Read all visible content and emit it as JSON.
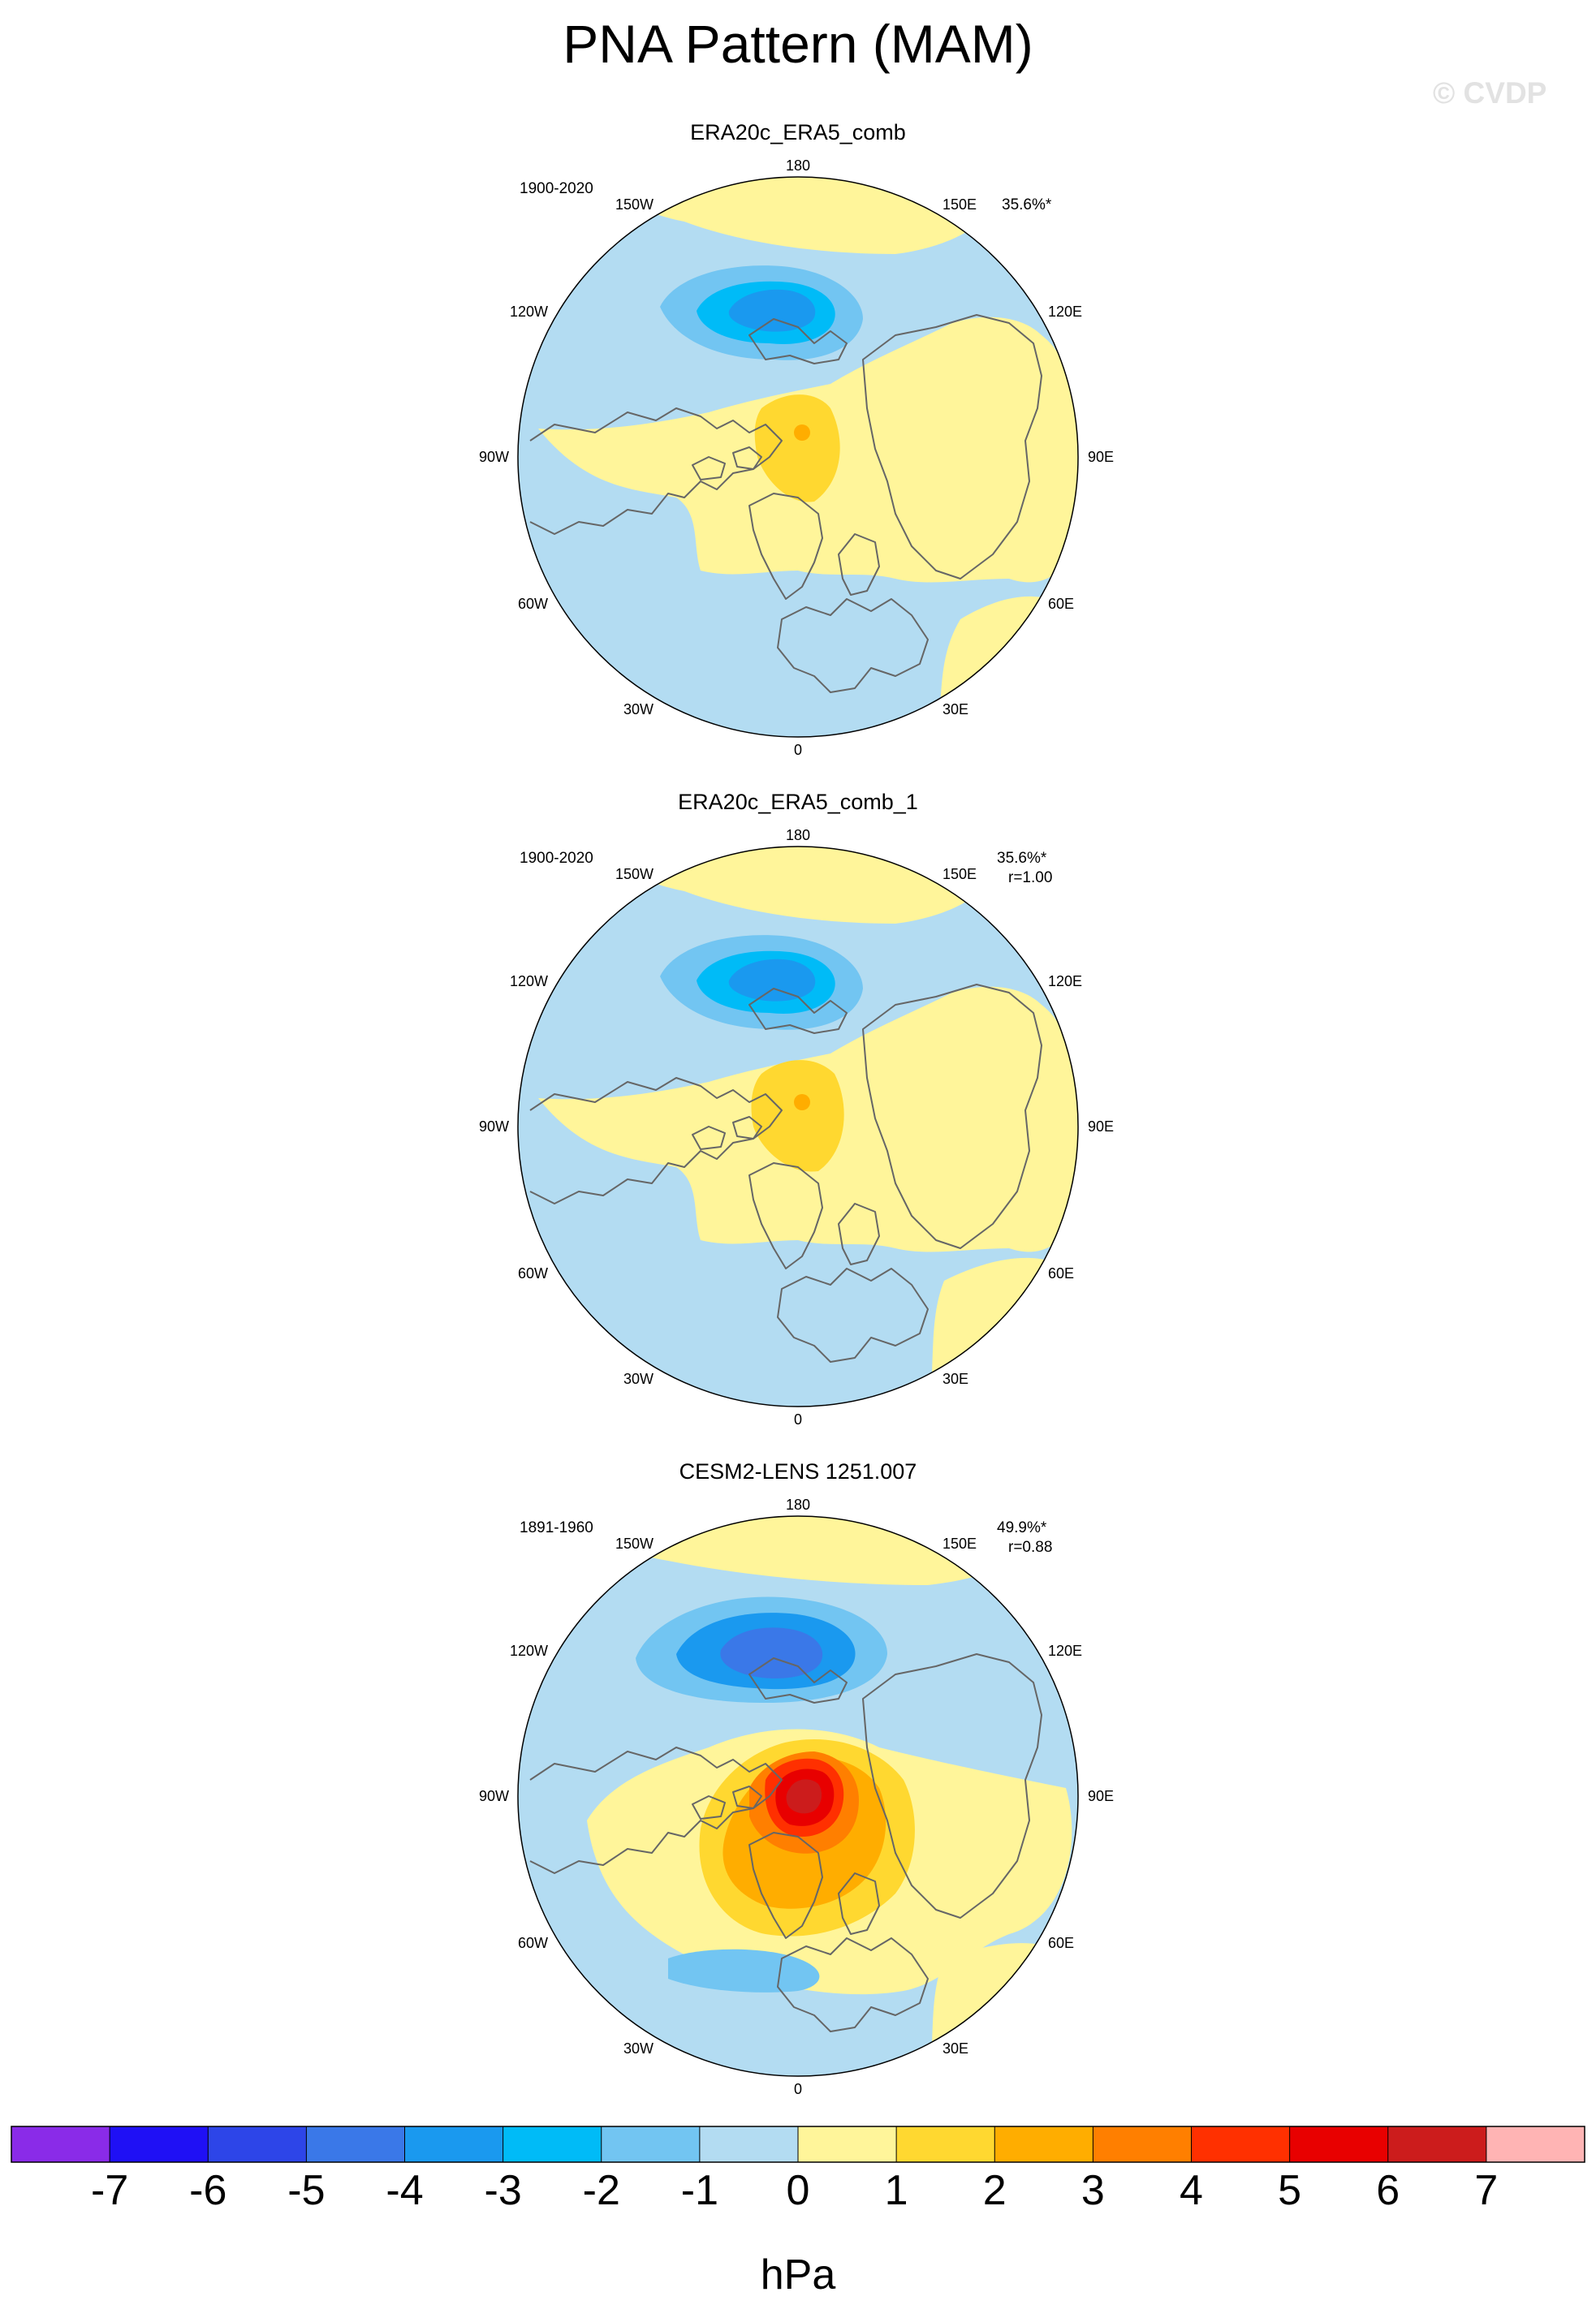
{
  "title": "PNA Pattern (MAM)",
  "watermark": "© CVDP",
  "colors": {
    "ocean_neg1": "#b3dcf2",
    "pos0to1": "#fff59a",
    "pos1to2": "#ffd830",
    "pos2to3": "#ffad00",
    "pos3to4": "#ff7f00",
    "pos4to5": "#ff3000",
    "pos5to6": "#e80000",
    "pos6to7": "#cc1c1c",
    "neg2to1": "#72c5f2",
    "neg3to2": "#00bbf7",
    "neg4to3": "#1a99ef",
    "neg5to4": "#3a78e8"
  },
  "panels": [
    {
      "title": "ERA20c_ERA5_comb",
      "period": "1900-2020",
      "pct": "35.6%*",
      "r": ""
    },
    {
      "title": "ERA20c_ERA5_comb_1",
      "period": "1900-2020",
      "pct": "35.6%*",
      "r": "r=1.00"
    },
    {
      "title": "CESM2-LENS 1251.007",
      "period": "1891-1960",
      "pct": "49.9%*",
      "r": "r=0.88"
    }
  ],
  "longitudes": {
    "top": "180",
    "bottom": "0",
    "left": "90W",
    "right": "90E",
    "w150": "150W",
    "w120": "120W",
    "w60": "60W",
    "w30": "30W",
    "e150": "150E",
    "e120": "120E",
    "e60": "60E",
    "e30": "30E"
  },
  "colorbar": {
    "units": "hPa",
    "ticks": [
      "-7",
      "-6",
      "-5",
      "-4",
      "-3",
      "-2",
      "-1",
      "0",
      "1",
      "2",
      "3",
      "4",
      "5",
      "6",
      "7"
    ],
    "colors": [
      "#8a2be8",
      "#1f10f5",
      "#2d45e8",
      "#3a78e8",
      "#1a99ef",
      "#00bbf7",
      "#72c5f2",
      "#b3dcf2",
      "#fff59a",
      "#ffd830",
      "#ffad00",
      "#ff7f00",
      "#ff3000",
      "#e80000",
      "#cc1c1c",
      "#ffb4b4"
    ]
  }
}
